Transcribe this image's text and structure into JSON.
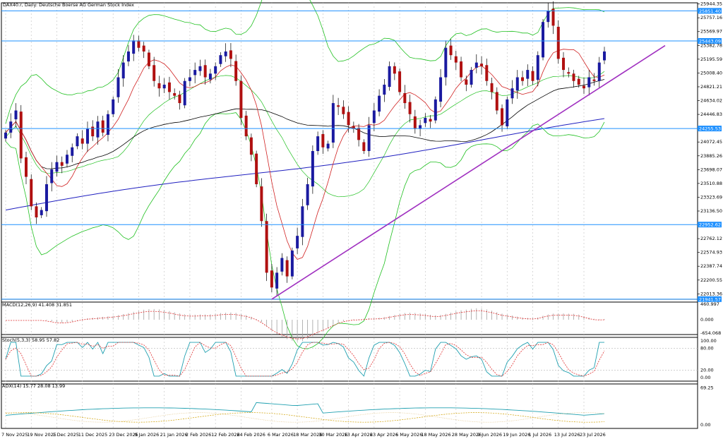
{
  "chart_data": {
    "type": "candlestick",
    "title": "DAX40.r, Daily: Deutsche Boerse AG German Stock Index",
    "price_axis": {
      "ticks": [
        "25944.35",
        "25757.16",
        "25569.97",
        "25382.78",
        "25195.59",
        "25008.40",
        "24821.21",
        "24634.02",
        "24446.83",
        "24072.45",
        "23885.26",
        "23698.07",
        "23510.88",
        "23323.69",
        "23136.50",
        "22762.12",
        "22574.93",
        "22387.74",
        "22200.55",
        "22013.36"
      ],
      "range": [
        21940,
        25960
      ]
    },
    "horizontal_levels": [
      {
        "label": "25851.40",
        "value": 25851.4,
        "color": "#1e90ff"
      },
      {
        "label": "25443.09",
        "value": 25443.09,
        "color": "#1e90ff"
      },
      {
        "label": "24255.53",
        "value": 24255.53,
        "color": "#1e90ff"
      },
      {
        "label": "22952.62",
        "value": 22952.62,
        "color": "#1e90ff"
      },
      {
        "label": "21941.57",
        "value": 21941.57,
        "color": "#1e90ff"
      }
    ],
    "date_labels": [
      "7 Nov 2025",
      "19 Nov 2025",
      "1 Dec 2025",
      "11 Dec 2025",
      "23 Dec 2025",
      "9 Jan 2026",
      "21 Jan 2026",
      "2 Feb 2026",
      "12 Feb 2026",
      "24 Feb 2026",
      "6 Mar 2026",
      "18 Mar 2026",
      "30 Mar 2026",
      "13 Apr 2026",
      "23 Apr 2026",
      "6 May 2026",
      "18 May 2026",
      "28 May 2026",
      "9 Jun 2026",
      "19 Jun 2026",
      "1 Jul 2026",
      "13 Jul 2026",
      "23 Jul 2026"
    ],
    "closes": [
      24200,
      24350,
      24500,
      23850,
      23600,
      23200,
      23050,
      23150,
      23500,
      23700,
      23800,
      23750,
      23900,
      24000,
      24150,
      24050,
      24250,
      24150,
      24350,
      24200,
      24450,
      24650,
      24950,
      25150,
      25300,
      25450,
      25350,
      25300,
      25100,
      24900,
      24800,
      24850,
      24750,
      24700,
      24600,
      24900,
      24950,
      25050,
      25100,
      24950,
      25000,
      25100,
      25250,
      25300,
      25200,
      24900,
      24400,
      24150,
      23900,
      23500,
      23000,
      22300,
      22100,
      22300,
      22500,
      22250,
      22600,
      22800,
      23200,
      23500,
      23950,
      24150,
      24000,
      24050,
      24600,
      24550,
      24450,
      24300,
      24250,
      24100,
      23950,
      24300,
      24500,
      24700,
      24850,
      25100,
      25000,
      24750,
      24600,
      24450,
      24250,
      24300,
      24400,
      24350,
      24650,
      24950,
      25350,
      25250,
      25150,
      24950,
      24850,
      25050,
      25150,
      25100,
      24900,
      24750,
      24500,
      24300,
      24650,
      24800,
      24950,
      24900,
      25050,
      24900,
      25250,
      25700,
      25850,
      25650,
      25200,
      25050,
      25000,
      24900,
      24850,
      24800,
      24950,
      24900,
      25150,
      25300
    ],
    "series": [
      {
        "name": "MA 200",
        "color": "#2020c0"
      },
      {
        "name": "MA 50",
        "color": "#000000"
      },
      {
        "name": "MA 20",
        "color": "#d02020"
      },
      {
        "name": "Bollinger Bands",
        "color": "#20c020"
      },
      {
        "name": "Trendline",
        "color": "#a030c0"
      }
    ],
    "indicators": [
      {
        "label": "MACD(12,26,9) 41.408 31.851",
        "axis": [
          "460.997",
          "0.000",
          "-654.068"
        ]
      },
      {
        "label": "Stoch(5,3,3) 58.95 57.82",
        "axis": [
          "100.00",
          "80.00",
          "20.00",
          "0.00"
        ]
      },
      {
        "label": "ADX(14) 15.77 28.08 13.99",
        "axis": [
          "69.25",
          "0.00"
        ]
      }
    ],
    "up_color": "#1a1aa0",
    "down_color": "#b01010",
    "grid": "vertical dashed"
  }
}
